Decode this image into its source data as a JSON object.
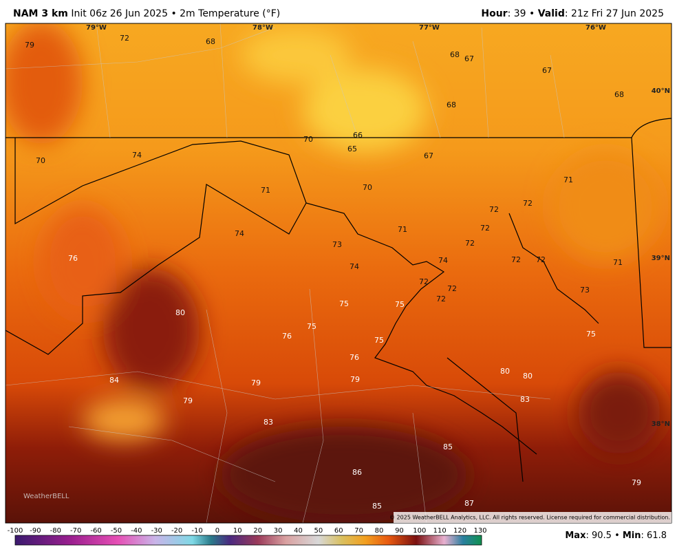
{
  "header": {
    "model": "NAM 3 km",
    "info": "Init 06z 26 Jun 2025 • 2m Temperature (°F)",
    "hour_label": "Hour",
    "hour_value": ": 39 • ",
    "valid_label": "Valid",
    "valid_value": ": 21z Fri 27 Jun 2025"
  },
  "map": {
    "longitudes": [
      "79°W",
      "78°W",
      "77°W",
      "76°W"
    ],
    "latitudes": [
      "40°N",
      "39°N",
      "38°N"
    ],
    "values": [
      79,
      72,
      68,
      68,
      67,
      67,
      68,
      68,
      66,
      70,
      65,
      67,
      70,
      74,
      71,
      70,
      71,
      72,
      72,
      72,
      71,
      72,
      74,
      73,
      76,
      74,
      74,
      72,
      72,
      71,
      72,
      72,
      72,
      73,
      75,
      75,
      80,
      75,
      76,
      75,
      75,
      76,
      80,
      80,
      84,
      79,
      79,
      79,
      83,
      83,
      85,
      86,
      79,
      87,
      85
    ],
    "logo": "WeatherBELL",
    "copyright": "© 2025 WeatherBELL Analytics, LLC. All rights reserved. License required for commercial distribution."
  },
  "colorbar": {
    "ticks": [
      -100,
      -90,
      -80,
      -70,
      -60,
      -50,
      -40,
      -30,
      -20,
      -10,
      0,
      10,
      20,
      30,
      40,
      50,
      60,
      70,
      80,
      90,
      100,
      110,
      120,
      130
    ]
  },
  "footer": {
    "max_label": "Max",
    "max_value": ": 90.5 • ",
    "min_label": "Min",
    "min_value": ": 61.8"
  }
}
